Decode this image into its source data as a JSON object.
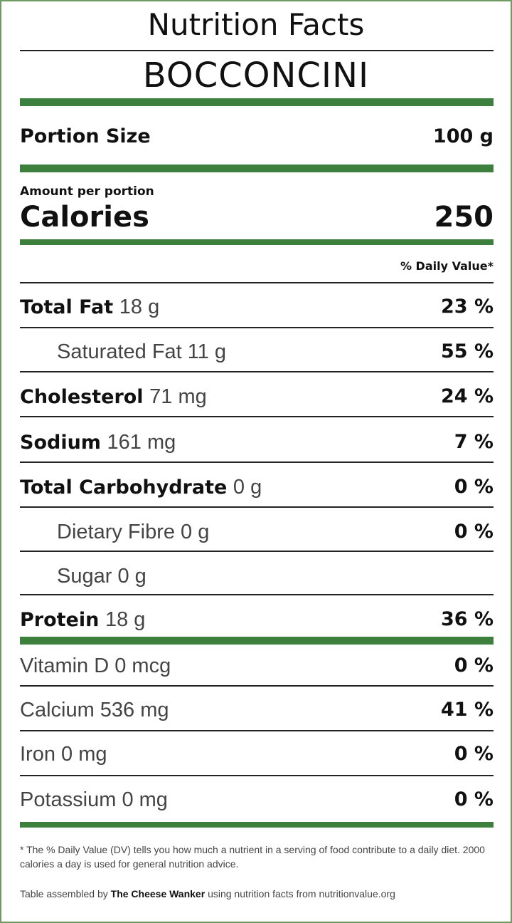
{
  "header": {
    "title": "Nutrition Facts",
    "product": "BOCCONCINI"
  },
  "portion": {
    "label": "Portion Size",
    "value": "100 g"
  },
  "calories": {
    "amount_label": "Amount per portion",
    "label": "Calories",
    "value": "250"
  },
  "dv_header": "% Daily Value*",
  "rows": [
    {
      "name": "Total Fat",
      "amount": "18 g",
      "dv": "23 %"
    },
    {
      "name": "Saturated Fat 11 g",
      "dv": "55 %"
    },
    {
      "name": "Cholesterol",
      "amount": "71 mg",
      "dv": "24 %"
    },
    {
      "name": "Sodium",
      "amount": "161 mg",
      "dv": "7 %"
    },
    {
      "name": "Total Carbohydrate",
      "amount": "0 g",
      "dv": "0 %"
    },
    {
      "name": "Dietary Fibre 0 g",
      "dv": "0 %"
    },
    {
      "name": "Sugar 0 g"
    },
    {
      "name": "Protein",
      "amount": "18 g",
      "dv": "36 %"
    }
  ],
  "minerals": [
    {
      "name": "Vitamin D 0 mcg",
      "dv": "0 %"
    },
    {
      "name": "Calcium 536 mg",
      "dv": "41 %"
    },
    {
      "name": "Iron 0 mg",
      "dv": "0 %"
    },
    {
      "name": "Potassium 0 mg",
      "dv": "0 %"
    }
  ],
  "footnote": "* The % Daily Value (DV) tells you how much a nutrient in a serving of food contribute to a daily diet. 2000 calories a day is used for general nutrition advice.",
  "credit": {
    "prefix": "Table assembled by",
    "author": "The Cheese Wanker",
    "suffix": "using nutrition facts from nutritionvalue.org"
  }
}
